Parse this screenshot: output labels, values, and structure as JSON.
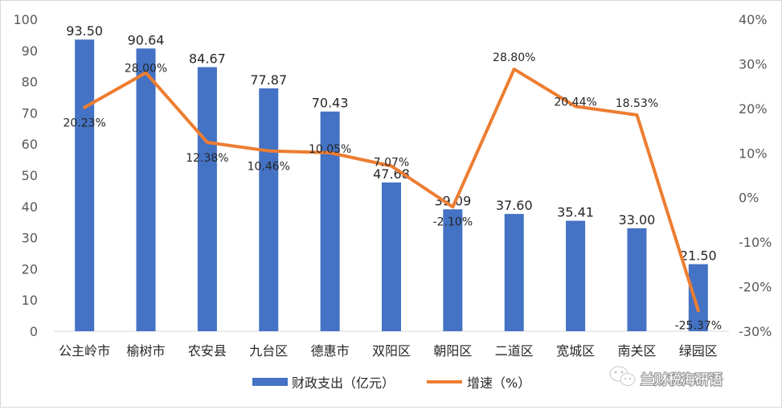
{
  "chart_data": {
    "type": "bar+line",
    "categories": [
      "公主岭市",
      "榆树市",
      "农安县",
      "九台区",
      "德惠市",
      "双阳区",
      "朝阳区",
      "二道区",
      "宽城区",
      "南关区",
      "绿园区"
    ],
    "series": [
      {
        "name": "财政支出（亿元）",
        "type": "bar",
        "axis": "left",
        "values": [
          93.5,
          90.64,
          84.67,
          77.87,
          70.43,
          47.68,
          39.09,
          37.6,
          35.41,
          33.0,
          21.5
        ],
        "labels": [
          "93.50",
          "90.64",
          "84.67",
          "77.87",
          "70.43",
          "47.68",
          "39.09",
          "37.60",
          "35.41",
          "33.00",
          "21.50"
        ]
      },
      {
        "name": "增速（%）",
        "type": "line",
        "axis": "right",
        "values": [
          20.23,
          28.0,
          12.38,
          10.46,
          10.05,
          7.07,
          -2.1,
          28.8,
          20.44,
          18.53,
          -25.37
        ],
        "labels": [
          "20.23%",
          "28.00%",
          "12.38%",
          "10.46%",
          "10.05%",
          "7.07%",
          "-2.10%",
          "28.80%",
          "20.44%",
          "18.53%",
          "-25.37%"
        ]
      }
    ],
    "y_left": {
      "min": 0,
      "max": 100,
      "ticks": [
        "0",
        "10",
        "20",
        "30",
        "40",
        "50",
        "60",
        "70",
        "80",
        "90",
        "100"
      ]
    },
    "y_right": {
      "min": -30,
      "max": 40,
      "ticks": [
        "-30%",
        "-20%",
        "-10%",
        "0%",
        "10%",
        "20%",
        "30%",
        "40%"
      ]
    },
    "legend_position": "bottom",
    "grid": false
  },
  "colors": {
    "bar": "#4472c4",
    "line": "#ed7d31",
    "axis": "#d9d9d9"
  },
  "watermark": {
    "text": "兰财税海研语",
    "icon": "wechat-icon"
  }
}
